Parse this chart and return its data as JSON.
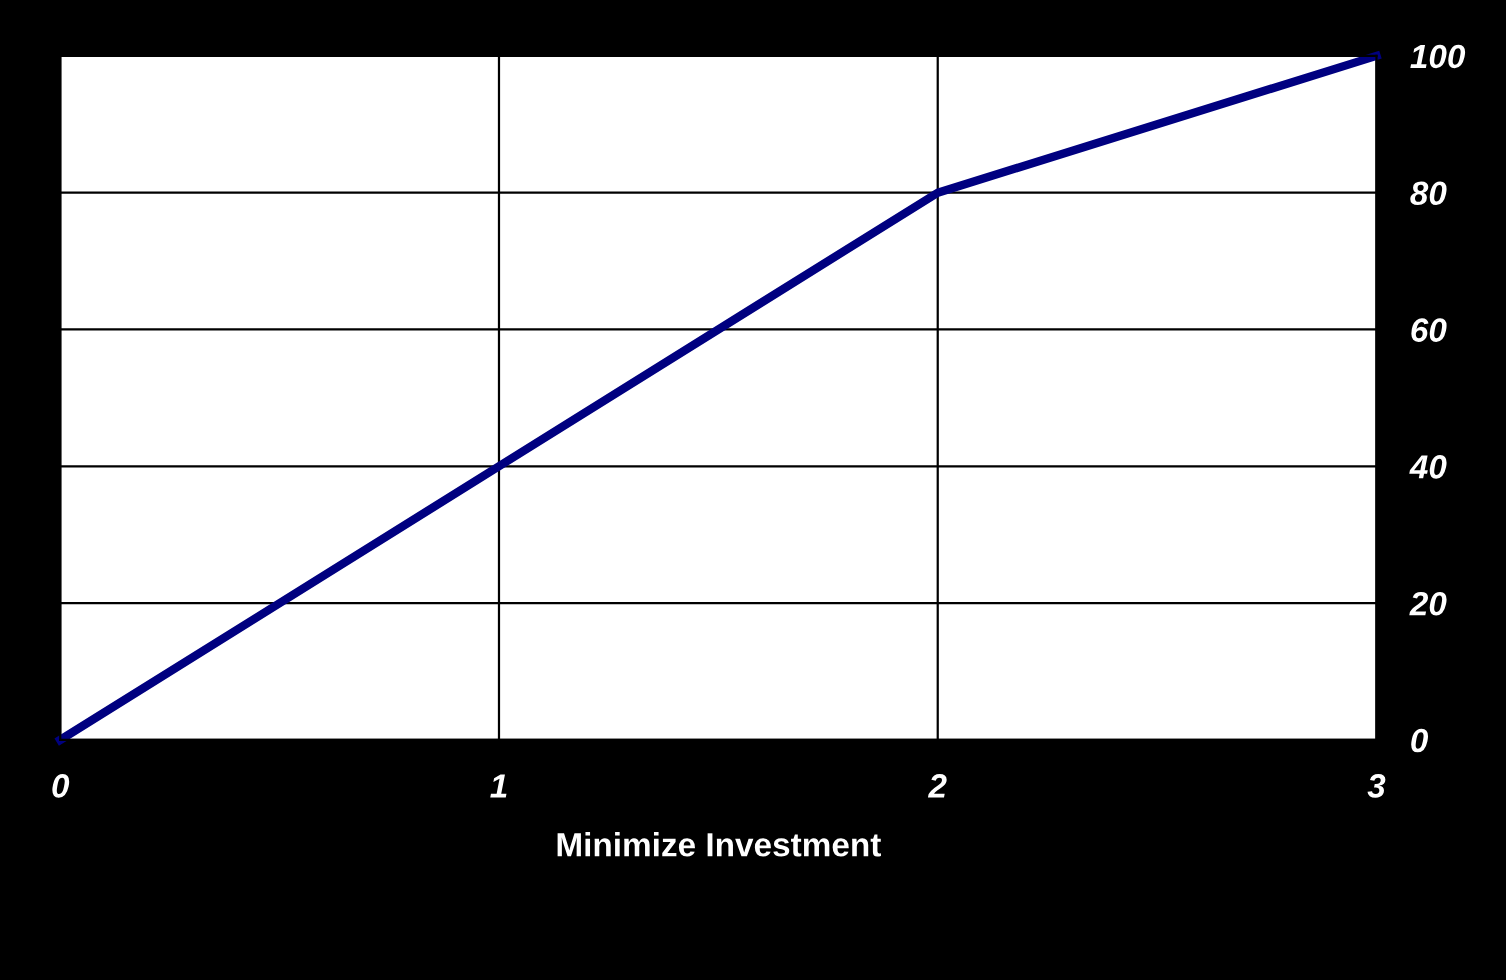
{
  "chart_data": {
    "type": "line",
    "xlabel": "Minimize Investment",
    "x": [
      0,
      1,
      2,
      3
    ],
    "series": [
      {
        "color": "#000080",
        "values": [
          0,
          40,
          80,
          100
        ]
      }
    ],
    "xlim": [
      0,
      3
    ],
    "xticks": [
      0,
      1,
      2,
      3
    ],
    "ylim": [
      0,
      100
    ],
    "yticks": [
      0,
      20,
      40,
      60,
      80,
      100
    ],
    "grid": true,
    "legend": false,
    "marker": "none",
    "line_style": "solid"
  }
}
